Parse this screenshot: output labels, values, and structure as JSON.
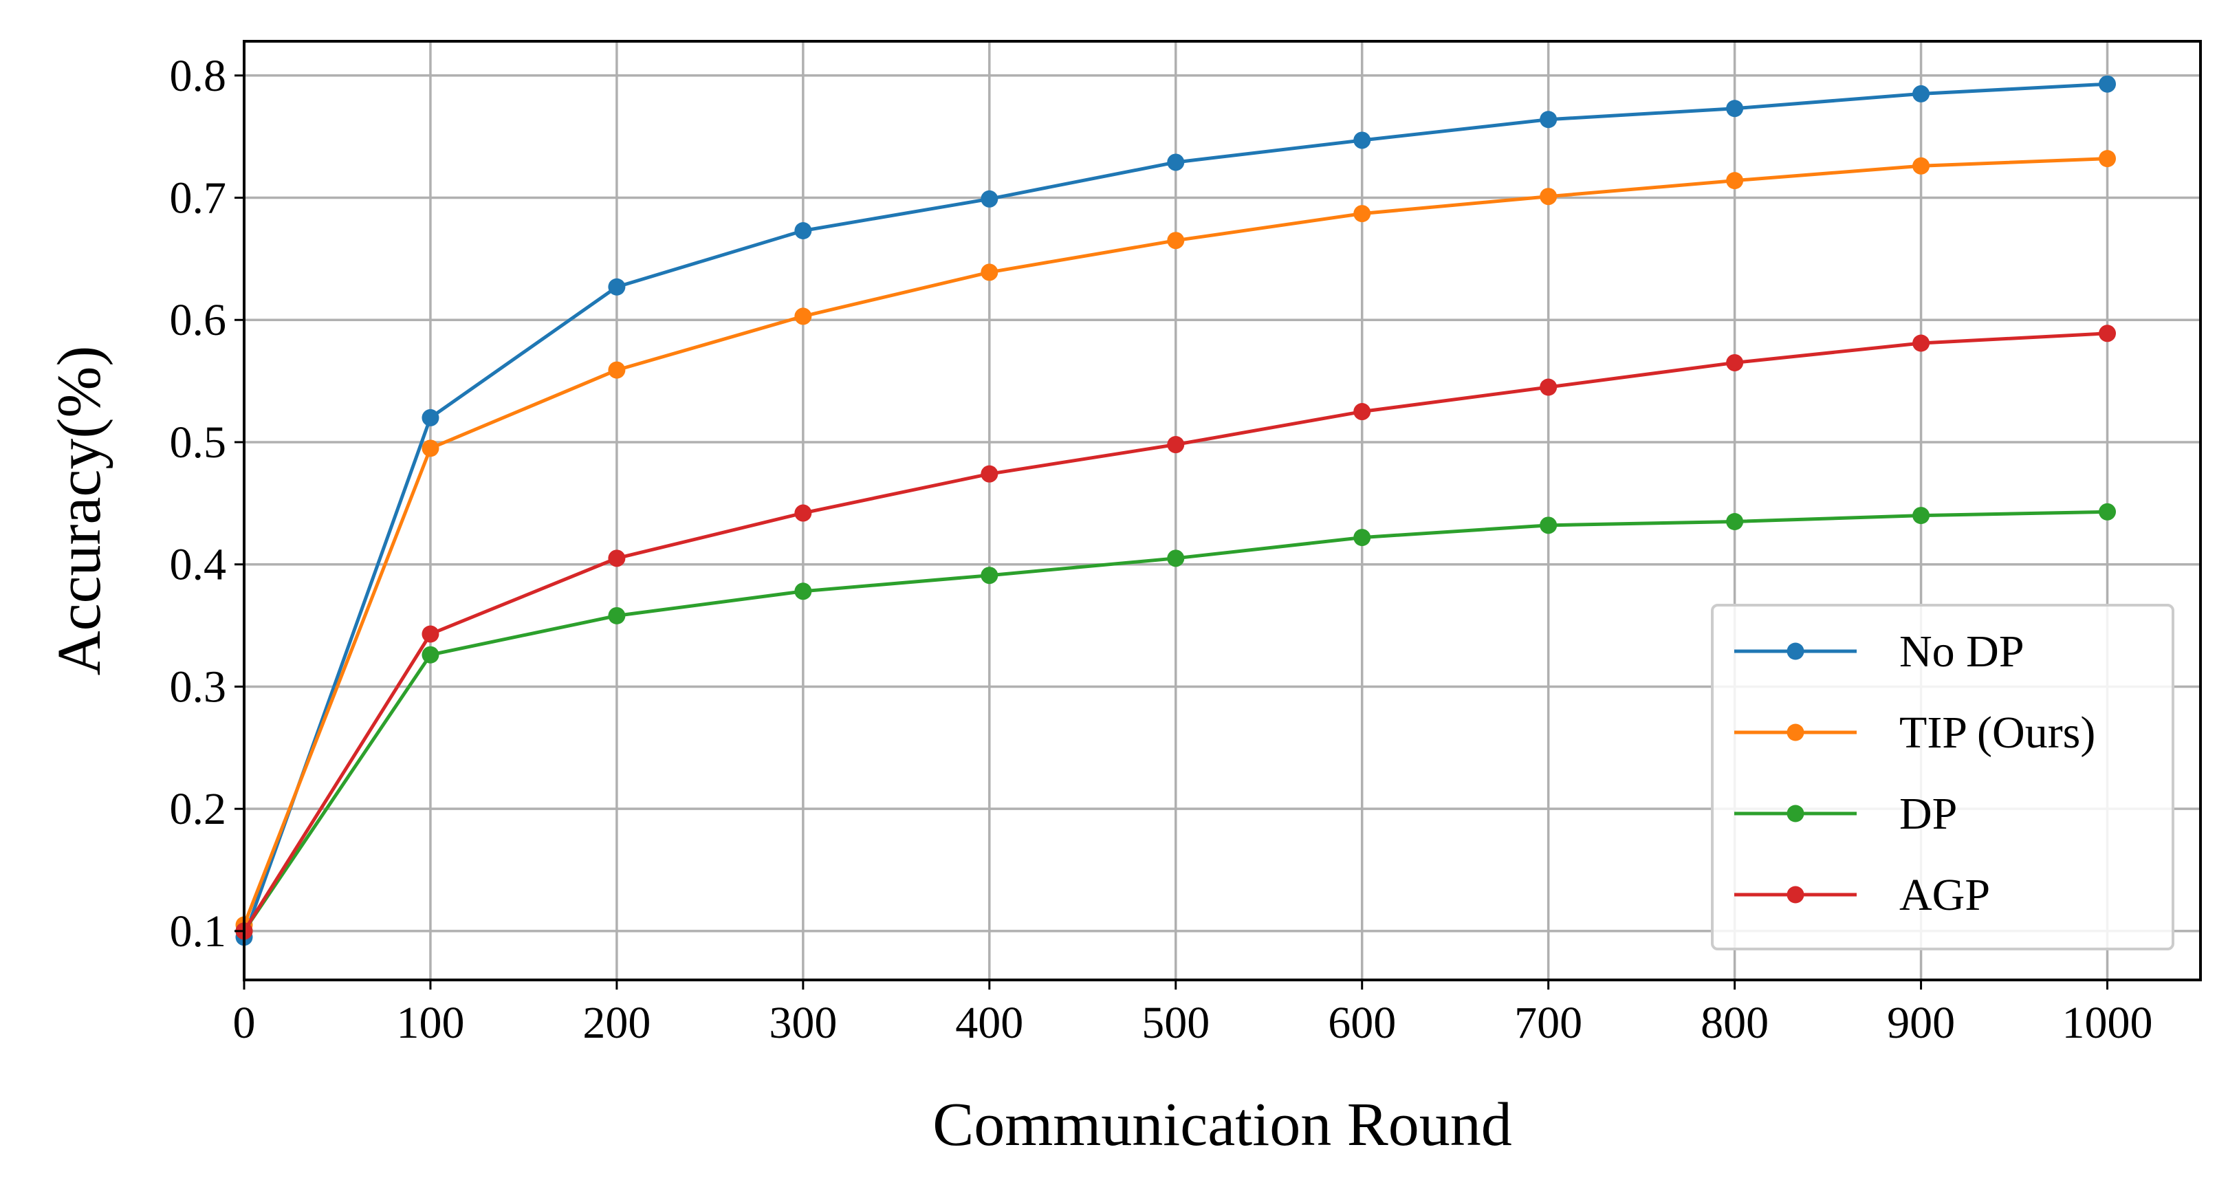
{
  "chart_data": {
    "type": "line",
    "title": "",
    "xlabel": "Communication Round",
    "ylabel": "Accuracy(%)",
    "x": [
      0,
      100,
      200,
      300,
      400,
      500,
      600,
      700,
      800,
      900,
      1000
    ],
    "xlim": [
      0,
      1050
    ],
    "ylim": [
      0.06,
      0.828
    ],
    "xticks": [
      0,
      100,
      200,
      300,
      400,
      500,
      600,
      700,
      800,
      900,
      1000
    ],
    "xtick_labels": [
      "0",
      "100",
      "200",
      "300",
      "400",
      "500",
      "600",
      "700",
      "800",
      "900",
      "1000"
    ],
    "yticks": [
      0.1,
      0.2,
      0.3,
      0.4,
      0.5,
      0.6,
      0.7,
      0.8
    ],
    "ytick_labels": [
      "0.1",
      "0.2",
      "0.3",
      "0.4",
      "0.5",
      "0.6",
      "0.7",
      "0.8"
    ],
    "grid": true,
    "legend_position": "lower-right",
    "series": [
      {
        "name": "No DP",
        "color": "#1f77b4",
        "values": [
          0.095,
          0.52,
          0.627,
          0.673,
          0.699,
          0.729,
          0.747,
          0.764,
          0.773,
          0.785,
          0.793
        ]
      },
      {
        "name": "TIP (Ours)",
        "color": "#ff7f0e",
        "values": [
          0.105,
          0.495,
          0.559,
          0.603,
          0.639,
          0.665,
          0.687,
          0.701,
          0.714,
          0.726,
          0.732
        ]
      },
      {
        "name": "DP",
        "color": "#2ca02c",
        "values": [
          0.1,
          0.326,
          0.358,
          0.378,
          0.391,
          0.405,
          0.422,
          0.432,
          0.435,
          0.44,
          0.443
        ]
      },
      {
        "name": "AGP",
        "color": "#d62728",
        "values": [
          0.1,
          0.343,
          0.405,
          0.442,
          0.474,
          0.498,
          0.525,
          0.545,
          0.565,
          0.581,
          0.589
        ]
      }
    ]
  }
}
